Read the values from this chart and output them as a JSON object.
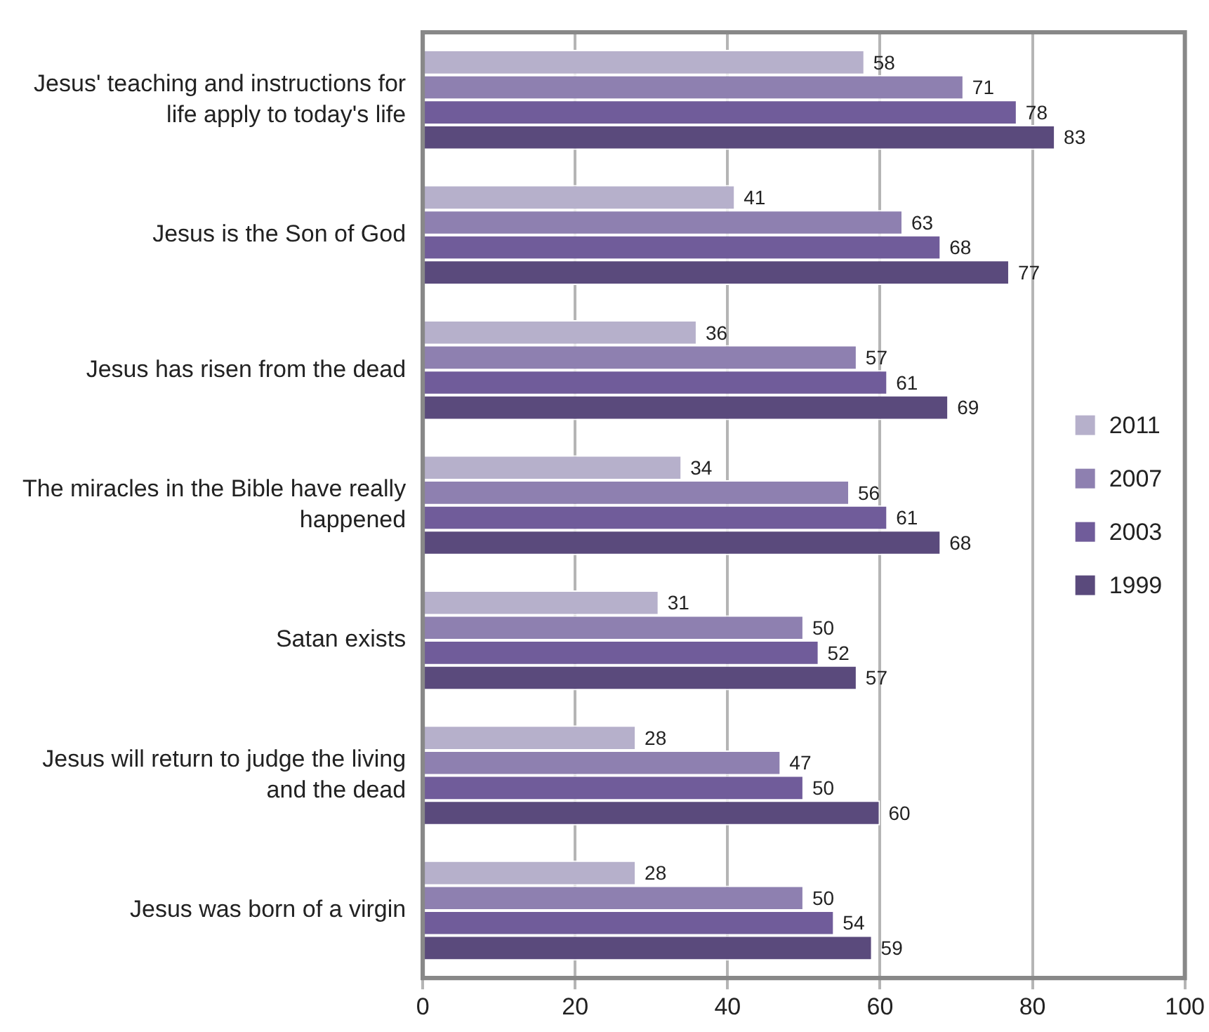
{
  "chart_data": {
    "type": "bar",
    "orientation": "horizontal",
    "categories": [
      "Jesus' teaching and instructions for life apply to today's life",
      "Jesus is the Son of God",
      "Jesus has risen from the dead",
      "The miracles in the Bible have really happened",
      "Satan exists",
      "Jesus will return to judge the living and the dead",
      "Jesus was born of a virgin"
    ],
    "series": [
      {
        "name": "2011",
        "color": "#b6b0cb",
        "values": [
          58,
          41,
          36,
          34,
          31,
          28,
          28
        ]
      },
      {
        "name": "2007",
        "color": "#8e80b0",
        "values": [
          71,
          63,
          57,
          56,
          50,
          47,
          50
        ]
      },
      {
        "name": "2003",
        "color": "#705c9a",
        "values": [
          78,
          68,
          61,
          61,
          52,
          50,
          54
        ]
      },
      {
        "name": "1999",
        "color": "#5a4a7c",
        "values": [
          83,
          77,
          69,
          68,
          57,
          60,
          59
        ]
      }
    ],
    "xlim": [
      0,
      100
    ],
    "xticks": [
      0,
      20,
      40,
      60,
      80,
      100
    ],
    "grid": "x",
    "legend": "right",
    "data_labels": true
  }
}
